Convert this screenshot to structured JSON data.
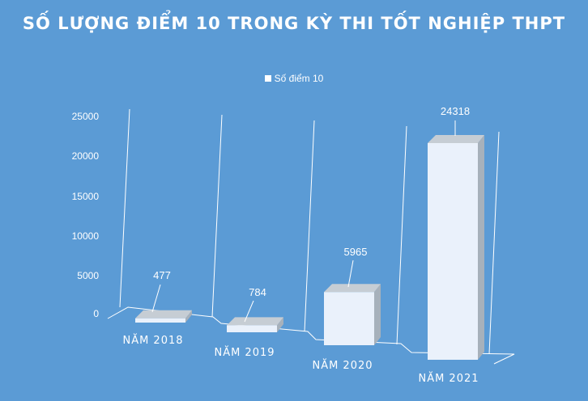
{
  "chart_data": {
    "type": "bar",
    "title": "SỐ LƯỢNG ĐIỂM 10 TRONG KỲ THI TỐT NGHIỆP THPT",
    "categories": [
      "NĂM 2018",
      "NĂM 2019",
      "NĂM 2020",
      "NĂM 2021"
    ],
    "series": [
      {
        "name": "Số điểm 10",
        "values": [
          477,
          784,
          5965,
          24318
        ]
      }
    ],
    "yticks": [
      "0",
      "5000",
      "10000",
      "15000",
      "20000",
      "25000"
    ],
    "ylim": [
      0,
      25000
    ],
    "legend_position": "top",
    "grid": true,
    "colors": {
      "background": "#5b9bd5",
      "bar_front": "#eaf1fb",
      "bar_side": "#a7b1bb",
      "bar_top": "#c6cdd4",
      "gridline": "#ffffff"
    }
  }
}
